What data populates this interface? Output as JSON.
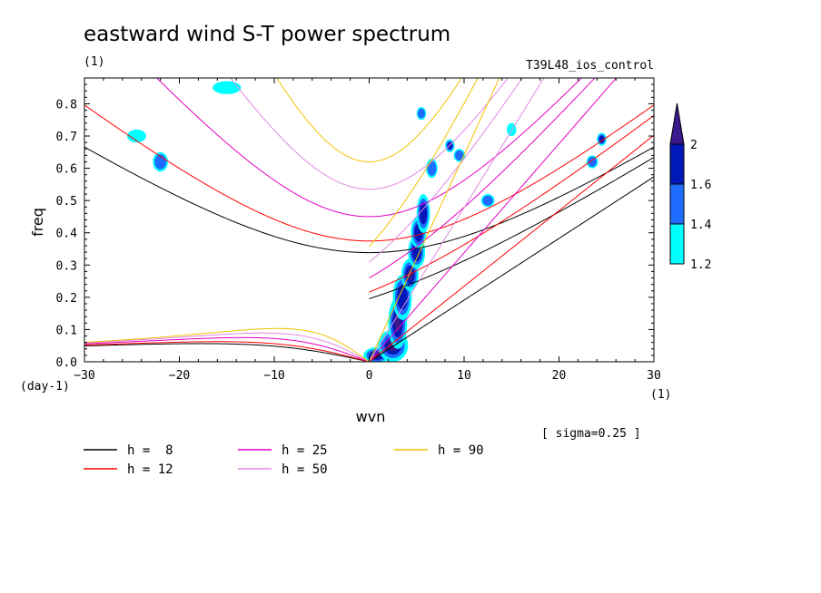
{
  "chart_data": {
    "type": "heatmap",
    "title": "eastward wind S-T power spectrum",
    "subtitle_left": "(1)",
    "subtitle_right": "T39L48_ios_control",
    "xlabel": "wvn",
    "ylabel": "freq",
    "x_unit": "(1)",
    "y_unit": "(day-1)",
    "xlim": [
      -30,
      30
    ],
    "ylim": [
      0,
      0.88
    ],
    "x_ticks": [
      -30,
      -20,
      -10,
      0,
      10,
      20,
      30
    ],
    "y_ticks": [
      0.0,
      0.1,
      0.2,
      0.3,
      0.4,
      0.5,
      0.6,
      0.7,
      0.8
    ],
    "note": "[ sigma=0.25 ]",
    "colorbar": {
      "levels": [
        "1.2",
        "1.4",
        "1.6",
        "2"
      ],
      "colors": [
        "#00ffff",
        "#1e6bff",
        "#0018b8",
        "#3a1a8c"
      ]
    },
    "dispersion_curves": [
      {
        "label": "h =  8",
        "h": 8,
        "color": "#000000"
      },
      {
        "label": "h = 12",
        "h": 12,
        "color": "#ff0000"
      },
      {
        "label": "h = 25",
        "h": 25,
        "color": "#e400c4"
      },
      {
        "label": "h = 50",
        "h": 50,
        "color": "#e08ae0"
      },
      {
        "label": "h = 90",
        "h": 90,
        "color": "#f2c200"
      }
    ],
    "spectral_blobs": [
      {
        "x": 0.8,
        "y": 0.02,
        "rx": 1.4,
        "ry": 0.025,
        "level": 3
      },
      {
        "x": 2.5,
        "y": 0.05,
        "rx": 1.6,
        "ry": 0.05,
        "level": 4
      },
      {
        "x": 3.0,
        "y": 0.12,
        "rx": 1.0,
        "ry": 0.08,
        "level": 4
      },
      {
        "x": 3.5,
        "y": 0.2,
        "rx": 1.0,
        "ry": 0.07,
        "level": 3
      },
      {
        "x": 4.3,
        "y": 0.27,
        "rx": 0.9,
        "ry": 0.05,
        "level": 4
      },
      {
        "x": 5.0,
        "y": 0.34,
        "rx": 0.9,
        "ry": 0.05,
        "level": 3
      },
      {
        "x": 5.2,
        "y": 0.4,
        "rx": 0.8,
        "ry": 0.05,
        "level": 3
      },
      {
        "x": 5.7,
        "y": 0.46,
        "rx": 0.7,
        "ry": 0.06,
        "level": 3
      },
      {
        "x": 6.6,
        "y": 0.6,
        "rx": 0.6,
        "ry": 0.03,
        "level": 2
      },
      {
        "x": 8.5,
        "y": 0.67,
        "rx": 0.5,
        "ry": 0.02,
        "level": 3
      },
      {
        "x": 5.5,
        "y": 0.77,
        "rx": 0.5,
        "ry": 0.02,
        "level": 2
      },
      {
        "x": 9.5,
        "y": 0.64,
        "rx": 0.6,
        "ry": 0.02,
        "level": 2
      },
      {
        "x": 24.5,
        "y": 0.69,
        "rx": 0.5,
        "ry": 0.02,
        "level": 3
      },
      {
        "x": 23.5,
        "y": 0.62,
        "rx": 0.6,
        "ry": 0.02,
        "level": 2
      },
      {
        "x": -22.0,
        "y": 0.62,
        "rx": 0.8,
        "ry": 0.03,
        "level": 2
      },
      {
        "x": -24.5,
        "y": 0.7,
        "rx": 1.0,
        "ry": 0.02,
        "level": 1
      },
      {
        "x": -15.0,
        "y": 0.85,
        "rx": 1.5,
        "ry": 0.02,
        "level": 1
      },
      {
        "x": 12.5,
        "y": 0.5,
        "rx": 0.7,
        "ry": 0.02,
        "level": 2
      },
      {
        "x": 15.0,
        "y": 0.72,
        "rx": 0.5,
        "ry": 0.02,
        "level": 1
      }
    ]
  }
}
